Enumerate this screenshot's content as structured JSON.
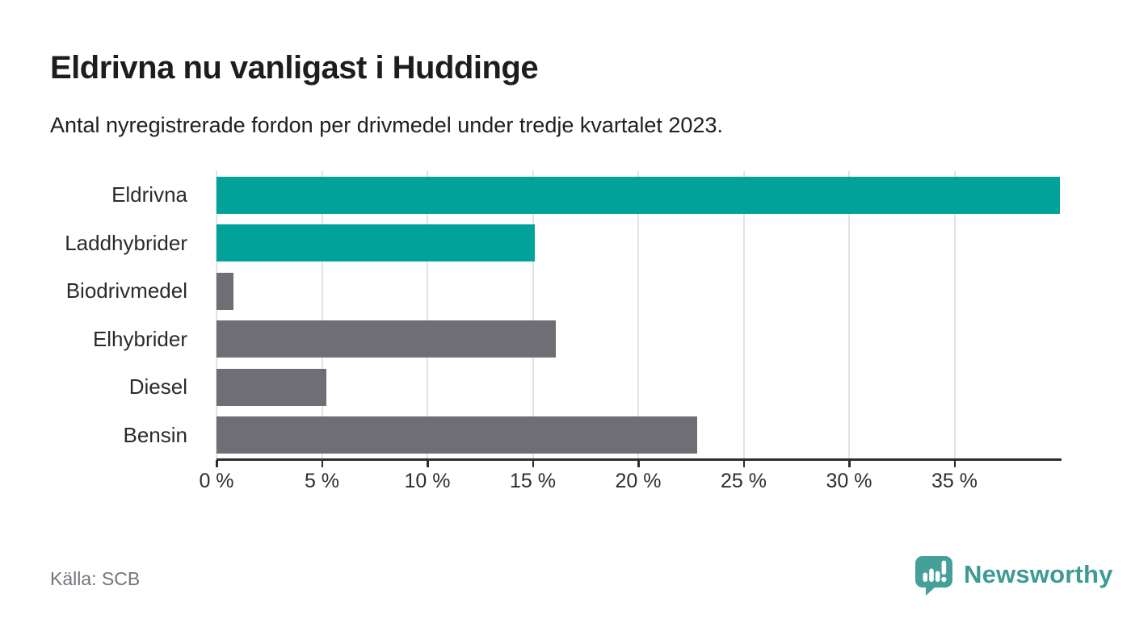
{
  "header": {
    "title": "Eldrivna nu vanligast i Huddinge",
    "subtitle": "Antal nyregistrerade fordon per drivmedel under tredje kvartalet 2023."
  },
  "chart_data": {
    "type": "bar",
    "orientation": "horizontal",
    "title": "Eldrivna nu vanligast i Huddinge",
    "subtitle": "Antal nyregistrerade fordon per drivmedel under tredje kvartalet 2023.",
    "categories": [
      "Eldrivna",
      "Laddhybrider",
      "Biodrivmedel",
      "Elhybrider",
      "Diesel",
      "Bensin"
    ],
    "values": [
      40.0,
      15.1,
      0.8,
      16.1,
      5.2,
      22.8
    ],
    "unit": "%",
    "bar_colors": [
      "#00a29a",
      "#00a29a",
      "#6f6e74",
      "#6f6e74",
      "#6f6e74",
      "#6f6e74"
    ],
    "highlight_color": "#00a29a",
    "default_color": "#6f6e74",
    "xlim": [
      0,
      40
    ],
    "x_ticks": [
      0,
      5,
      10,
      15,
      20,
      25,
      30,
      35
    ],
    "x_tick_labels": [
      "0 %",
      "5 %",
      "10 %",
      "15 %",
      "20 %",
      "25 %",
      "30 %",
      "35 %"
    ],
    "grid": "vertical-on",
    "legend": "none",
    "xlabel": "",
    "ylabel": ""
  },
  "footer": {
    "source": "Källa: SCB",
    "brand_name": "Newsworthy"
  },
  "colors": {
    "accent_teal": "#00a29a",
    "bar_gray": "#6f6e74",
    "brand_teal": "#3e9a94",
    "gridline": "#e2e2e2",
    "axis": "#2d2d2d",
    "source_text": "#75747d"
  }
}
